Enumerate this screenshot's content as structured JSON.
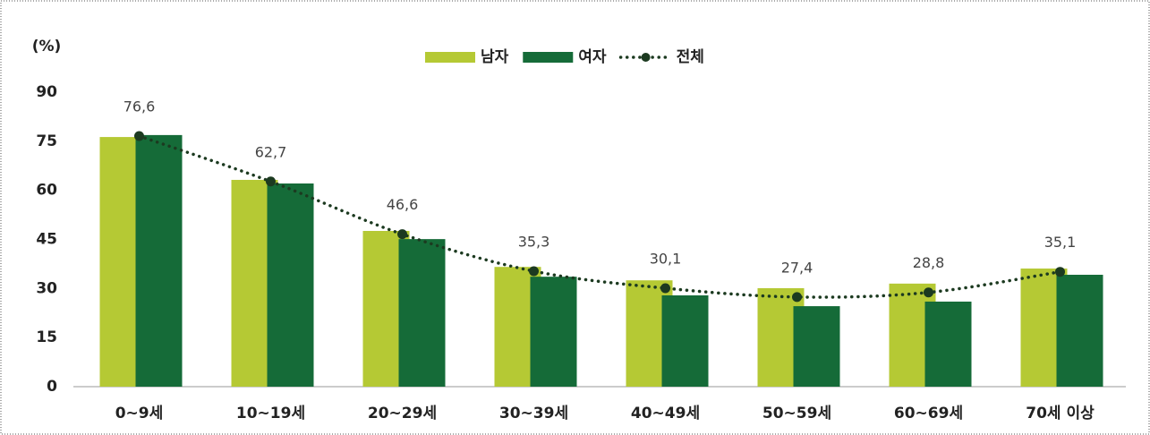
{
  "chart_data": {
    "type": "bar",
    "y_label": "(%)",
    "categories": [
      "0~9세",
      "10~19세",
      "20~29세",
      "30~39세",
      "40~49세",
      "50~59세",
      "60~69세",
      "70세 이상"
    ],
    "series": [
      {
        "name": "남자",
        "type": "bar",
        "color": "#b5c934",
        "values": [
          76.3,
          63.2,
          47.6,
          36.6,
          32.5,
          30.1,
          31.5,
          36.1
        ]
      },
      {
        "name": "여자",
        "type": "bar",
        "color": "#156b38",
        "values": [
          76.9,
          62.1,
          45.1,
          33.6,
          27.9,
          24.6,
          26.0,
          34.2
        ]
      },
      {
        "name": "전체",
        "type": "line",
        "color": "#1c3a20",
        "values": [
          76.6,
          62.7,
          46.6,
          35.3,
          30.1,
          27.4,
          28.8,
          35.1
        ],
        "value_labels": [
          "76,6",
          "62,7",
          "46,6",
          "35,3",
          "30,1",
          "27,4",
          "28,8",
          "35,1"
        ]
      }
    ],
    "ylim": [
      0,
      90
    ],
    "yticks": [
      0,
      15,
      30,
      45,
      60,
      75,
      90
    ],
    "grid": false,
    "legend": "top"
  }
}
